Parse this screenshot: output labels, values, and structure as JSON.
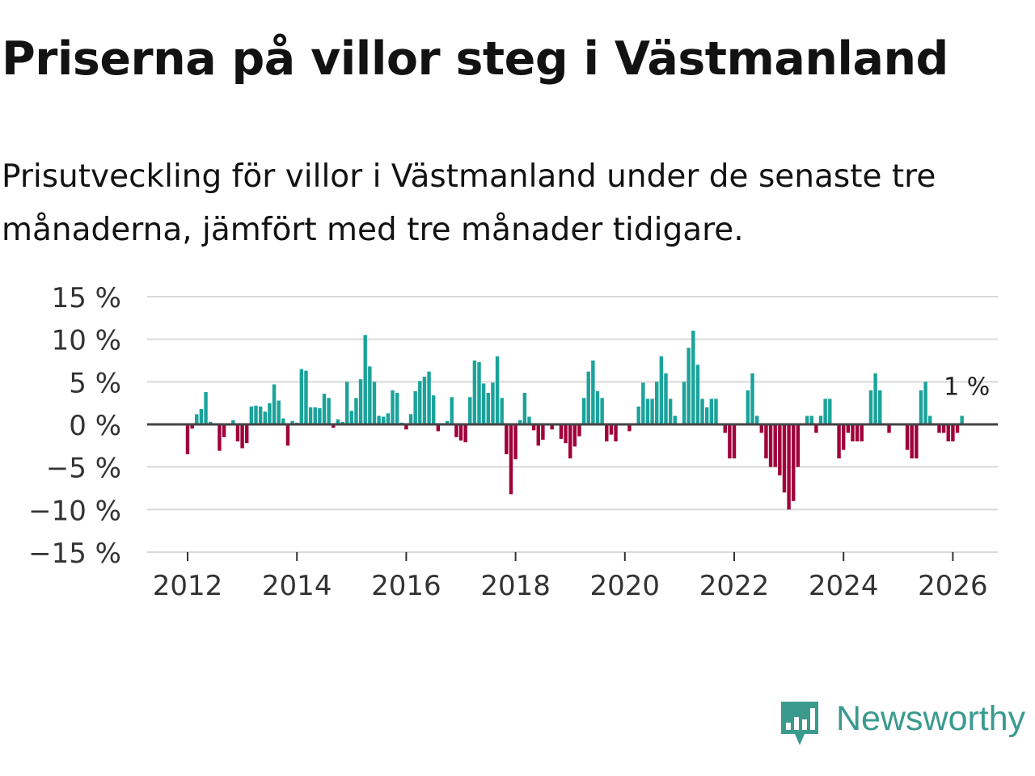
{
  "title": "Priserna på villor steg i Västmanland",
  "subtitle": "Prisutveckling för villor i Västmanland under de senaste tre månaderna, jämfört med tre månader tidigare.",
  "logo_text": "Newsworthy",
  "colors": {
    "positive": "#1aa39b",
    "negative": "#a0003a",
    "grid": "#d9d9d9",
    "zero": "#444444",
    "text": "#333333"
  },
  "chart_data": {
    "type": "bar",
    "title": "Priserna på villor steg i Västmanland",
    "xlabel": "",
    "ylabel": "",
    "ylim": [
      -15,
      15
    ],
    "y_ticks": [
      15,
      10,
      5,
      0,
      -5,
      -10,
      -15
    ],
    "y_tick_labels": [
      "15 %",
      "10 %",
      "5 %",
      "0 %",
      "−5 %",
      "−10 %",
      "−15 %"
    ],
    "x_ticks": [
      2012,
      2014,
      2016,
      2018,
      2020,
      2022,
      2024,
      2026
    ],
    "x_tick_labels": [
      "2012",
      "2014",
      "2016",
      "2018",
      "2020",
      "2022",
      "2024",
      "2026"
    ],
    "start": "2012-01",
    "frequency": "monthly",
    "annotation": "1 %",
    "values": [
      -3.5,
      -0.5,
      1.2,
      1.8,
      3.8,
      0.3,
      0,
      -3.1,
      -1.5,
      0,
      0.5,
      -2,
      -2.8,
      -2.2,
      2.1,
      2.2,
      2.1,
      1.5,
      2.5,
      4.7,
      2.8,
      0.7,
      -2.5,
      0.4,
      0.2,
      6.5,
      6.3,
      2,
      2,
      1.9,
      3.6,
      3.1,
      -0.4,
      0.6,
      0.3,
      5,
      1.6,
      3.1,
      5.3,
      10.5,
      6.8,
      5,
      1,
      0.9,
      1.3,
      4,
      3.7,
      0.2,
      -0.6,
      1.2,
      3.9,
      5.1,
      5.6,
      6.2,
      3.4,
      -0.8,
      0,
      0.4,
      3.2,
      -1.5,
      -1.9,
      -2.1,
      3.2,
      7.5,
      7.3,
      4.8,
      3.7,
      4.9,
      8,
      3.1,
      -3.5,
      -8.2,
      -4.1,
      0.5,
      3.7,
      0.9,
      -0.7,
      -2.5,
      -1.8,
      0,
      -0.6,
      0,
      -1.7,
      -2.2,
      -4,
      -2.6,
      -1.4,
      3.1,
      6.2,
      7.5,
      3.9,
      3.1,
      -2,
      -1.2,
      -2,
      0,
      0,
      -0.8,
      0,
      2.1,
      4.9,
      3,
      3,
      5,
      8,
      6,
      3,
      1,
      0,
      5,
      9,
      11,
      7,
      3,
      2,
      3,
      3,
      0,
      -1,
      -4,
      -4,
      0,
      0,
      4,
      6,
      1,
      -1,
      -4,
      -5,
      -5,
      -6,
      -8,
      -10,
      -9,
      -5,
      0,
      1,
      1,
      -1,
      1,
      3,
      3,
      0,
      -4,
      -3,
      -1,
      -2,
      -2,
      -2,
      0,
      4,
      6,
      4,
      0,
      -1,
      0,
      0,
      0,
      -3,
      -4,
      -4,
      4,
      5,
      1,
      0,
      -1,
      -1,
      -2,
      -2,
      -1,
      1
    ]
  }
}
